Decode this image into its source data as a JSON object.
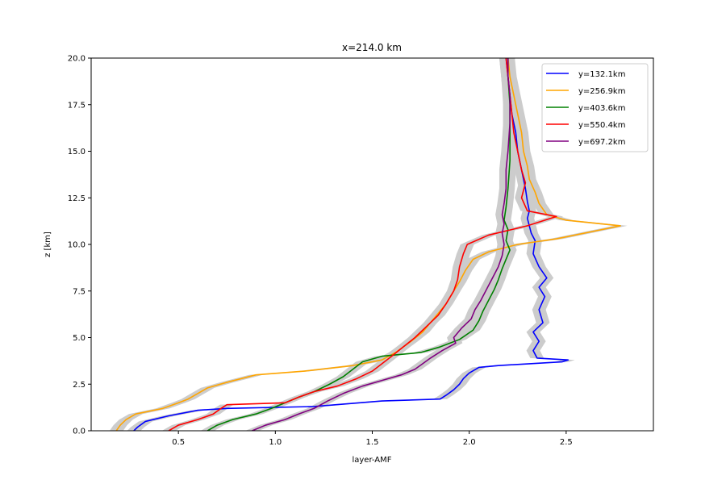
{
  "chart_data": {
    "type": "line",
    "title": "x=214.0 km",
    "xlabel": "layer-AMF",
    "ylabel": "z [km]",
    "xlim": [
      0.05,
      2.95
    ],
    "ylim": [
      0,
      20
    ],
    "xticks": [
      0.5,
      1.0,
      1.5,
      2.0,
      2.5
    ],
    "xtick_labels": [
      "0.5",
      "1.0",
      "1.5",
      "2.0",
      "2.5"
    ],
    "yticks": [
      0,
      2.5,
      5,
      7.5,
      10,
      12.5,
      15,
      17.5,
      20
    ],
    "ytick_labels": [
      "0.0",
      "2.5",
      "5.0",
      "7.5",
      "10.0",
      "12.5",
      "15.0",
      "17.5",
      "20.0"
    ],
    "grid": false,
    "legend_position": "top-right",
    "uncertainty_band_color": "#cccccc",
    "series": [
      {
        "name": "y=132.1km",
        "color": "#0000ff",
        "points": [
          [
            0.27,
            0.0
          ],
          [
            0.29,
            0.2
          ],
          [
            0.33,
            0.5
          ],
          [
            0.45,
            0.8
          ],
          [
            0.6,
            1.1
          ],
          [
            0.75,
            1.2
          ],
          [
            1.2,
            1.3
          ],
          [
            1.55,
            1.6
          ],
          [
            1.85,
            1.7
          ],
          [
            1.88,
            1.9
          ],
          [
            1.92,
            2.2
          ],
          [
            1.95,
            2.5
          ],
          [
            1.97,
            2.8
          ],
          [
            2.0,
            3.1
          ],
          [
            2.05,
            3.4
          ],
          [
            2.15,
            3.5
          ],
          [
            2.48,
            3.7
          ],
          [
            2.51,
            3.8
          ],
          [
            2.35,
            3.9
          ],
          [
            2.33,
            4.3
          ],
          [
            2.36,
            4.8
          ],
          [
            2.33,
            5.3
          ],
          [
            2.38,
            5.8
          ],
          [
            2.36,
            6.5
          ],
          [
            2.39,
            7.2
          ],
          [
            2.36,
            7.7
          ],
          [
            2.4,
            8.2
          ],
          [
            2.36,
            8.8
          ],
          [
            2.33,
            9.5
          ],
          [
            2.34,
            10.2
          ],
          [
            2.32,
            10.6
          ],
          [
            2.31,
            11.0
          ],
          [
            2.3,
            11.4
          ],
          [
            2.31,
            11.8
          ],
          [
            2.3,
            12.3
          ],
          [
            2.29,
            13.0
          ],
          [
            2.27,
            14.0
          ],
          [
            2.25,
            15.0
          ],
          [
            2.24,
            16.0
          ],
          [
            2.22,
            17.0
          ],
          [
            2.21,
            18.0
          ],
          [
            2.2,
            19.0
          ],
          [
            2.19,
            20.0
          ]
        ]
      },
      {
        "name": "y=256.9km",
        "color": "#ffa500",
        "points": [
          [
            0.18,
            0.0
          ],
          [
            0.2,
            0.3
          ],
          [
            0.23,
            0.6
          ],
          [
            0.28,
            0.9
          ],
          [
            0.42,
            1.2
          ],
          [
            0.5,
            1.5
          ],
          [
            0.55,
            1.7
          ],
          [
            0.6,
            2.0
          ],
          [
            0.65,
            2.3
          ],
          [
            0.75,
            2.6
          ],
          [
            0.9,
            3.0
          ],
          [
            1.15,
            3.2
          ],
          [
            1.4,
            3.5
          ],
          [
            1.55,
            3.8
          ],
          [
            1.62,
            4.2
          ],
          [
            1.7,
            4.8
          ],
          [
            1.76,
            5.3
          ],
          [
            1.8,
            5.8
          ],
          [
            1.84,
            6.3
          ],
          [
            1.88,
            6.8
          ],
          [
            1.92,
            7.5
          ],
          [
            1.95,
            8.0
          ],
          [
            1.98,
            8.6
          ],
          [
            2.02,
            9.2
          ],
          [
            2.1,
            9.6
          ],
          [
            2.25,
            10.0
          ],
          [
            2.45,
            10.3
          ],
          [
            2.78,
            11.0
          ],
          [
            2.5,
            11.3
          ],
          [
            2.4,
            11.6
          ],
          [
            2.36,
            12.2
          ],
          [
            2.34,
            12.8
          ],
          [
            2.31,
            13.5
          ],
          [
            2.3,
            14.2
          ],
          [
            2.28,
            15.0
          ],
          [
            2.27,
            16.0
          ],
          [
            2.25,
            17.0
          ],
          [
            2.23,
            18.0
          ],
          [
            2.21,
            19.0
          ],
          [
            2.2,
            20.0
          ]
        ]
      },
      {
        "name": "y=403.6km",
        "color": "#008000",
        "points": [
          [
            0.65,
            0.0
          ],
          [
            0.7,
            0.3
          ],
          [
            0.78,
            0.6
          ],
          [
            0.9,
            0.9
          ],
          [
            0.98,
            1.2
          ],
          [
            1.05,
            1.5
          ],
          [
            1.12,
            1.8
          ],
          [
            1.2,
            2.1
          ],
          [
            1.28,
            2.5
          ],
          [
            1.35,
            2.9
          ],
          [
            1.4,
            3.3
          ],
          [
            1.45,
            3.7
          ],
          [
            1.55,
            4.0
          ],
          [
            1.75,
            4.2
          ],
          [
            1.85,
            4.5
          ],
          [
            1.95,
            4.9
          ],
          [
            2.02,
            5.4
          ],
          [
            2.05,
            5.9
          ],
          [
            2.07,
            6.4
          ],
          [
            2.1,
            7.0
          ],
          [
            2.13,
            7.6
          ],
          [
            2.15,
            8.1
          ],
          [
            2.17,
            8.7
          ],
          [
            2.19,
            9.2
          ],
          [
            2.21,
            9.7
          ],
          [
            2.19,
            10.2
          ],
          [
            2.2,
            10.8
          ],
          [
            2.18,
            11.3
          ],
          [
            2.19,
            12.0
          ],
          [
            2.2,
            13.0
          ],
          [
            2.21,
            14.5
          ],
          [
            2.21,
            16.0
          ],
          [
            2.21,
            17.5
          ],
          [
            2.2,
            19.0
          ],
          [
            2.2,
            20.0
          ]
        ]
      },
      {
        "name": "y=550.4km",
        "color": "#ff0000",
        "points": [
          [
            0.45,
            0.0
          ],
          [
            0.5,
            0.3
          ],
          [
            0.6,
            0.6
          ],
          [
            0.68,
            0.9
          ],
          [
            0.72,
            1.2
          ],
          [
            0.75,
            1.4
          ],
          [
            1.05,
            1.5
          ],
          [
            1.12,
            1.8
          ],
          [
            1.2,
            2.1
          ],
          [
            1.32,
            2.4
          ],
          [
            1.42,
            2.8
          ],
          [
            1.5,
            3.2
          ],
          [
            1.55,
            3.6
          ],
          [
            1.6,
            4.0
          ],
          [
            1.66,
            4.5
          ],
          [
            1.72,
            5.0
          ],
          [
            1.78,
            5.6
          ],
          [
            1.84,
            6.2
          ],
          [
            1.88,
            6.8
          ],
          [
            1.92,
            7.5
          ],
          [
            1.94,
            8.1
          ],
          [
            1.95,
            8.8
          ],
          [
            1.97,
            9.5
          ],
          [
            1.99,
            10.0
          ],
          [
            2.1,
            10.5
          ],
          [
            2.3,
            11.0
          ],
          [
            2.45,
            11.5
          ],
          [
            2.3,
            11.8
          ],
          [
            2.27,
            12.5
          ],
          [
            2.29,
            13.3
          ],
          [
            2.27,
            14.0
          ],
          [
            2.25,
            15.0
          ],
          [
            2.23,
            16.0
          ],
          [
            2.22,
            17.0
          ],
          [
            2.21,
            18.0
          ],
          [
            2.2,
            19.0
          ],
          [
            2.19,
            20.0
          ]
        ]
      },
      {
        "name": "y=697.2km",
        "color": "#800080",
        "points": [
          [
            0.88,
            0.0
          ],
          [
            0.95,
            0.3
          ],
          [
            1.05,
            0.6
          ],
          [
            1.12,
            0.9
          ],
          [
            1.2,
            1.2
          ],
          [
            1.27,
            1.6
          ],
          [
            1.35,
            2.0
          ],
          [
            1.45,
            2.4
          ],
          [
            1.55,
            2.7
          ],
          [
            1.65,
            3.0
          ],
          [
            1.72,
            3.3
          ],
          [
            1.76,
            3.6
          ],
          [
            1.8,
            3.9
          ],
          [
            1.86,
            4.3
          ],
          [
            1.93,
            4.7
          ],
          [
            1.92,
            5.0
          ],
          [
            1.96,
            5.5
          ],
          [
            2.01,
            6.0
          ],
          [
            2.03,
            6.5
          ],
          [
            2.06,
            7.0
          ],
          [
            2.09,
            7.6
          ],
          [
            2.12,
            8.2
          ],
          [
            2.15,
            8.8
          ],
          [
            2.17,
            9.4
          ],
          [
            2.18,
            10.0
          ],
          [
            2.17,
            10.6
          ],
          [
            2.18,
            11.1
          ],
          [
            2.17,
            11.6
          ],
          [
            2.18,
            12.2
          ],
          [
            2.19,
            13.0
          ],
          [
            2.19,
            14.0
          ],
          [
            2.2,
            15.0
          ],
          [
            2.21,
            16.5
          ],
          [
            2.21,
            18.0
          ],
          [
            2.2,
            19.0
          ],
          [
            2.2,
            20.0
          ]
        ]
      }
    ]
  }
}
